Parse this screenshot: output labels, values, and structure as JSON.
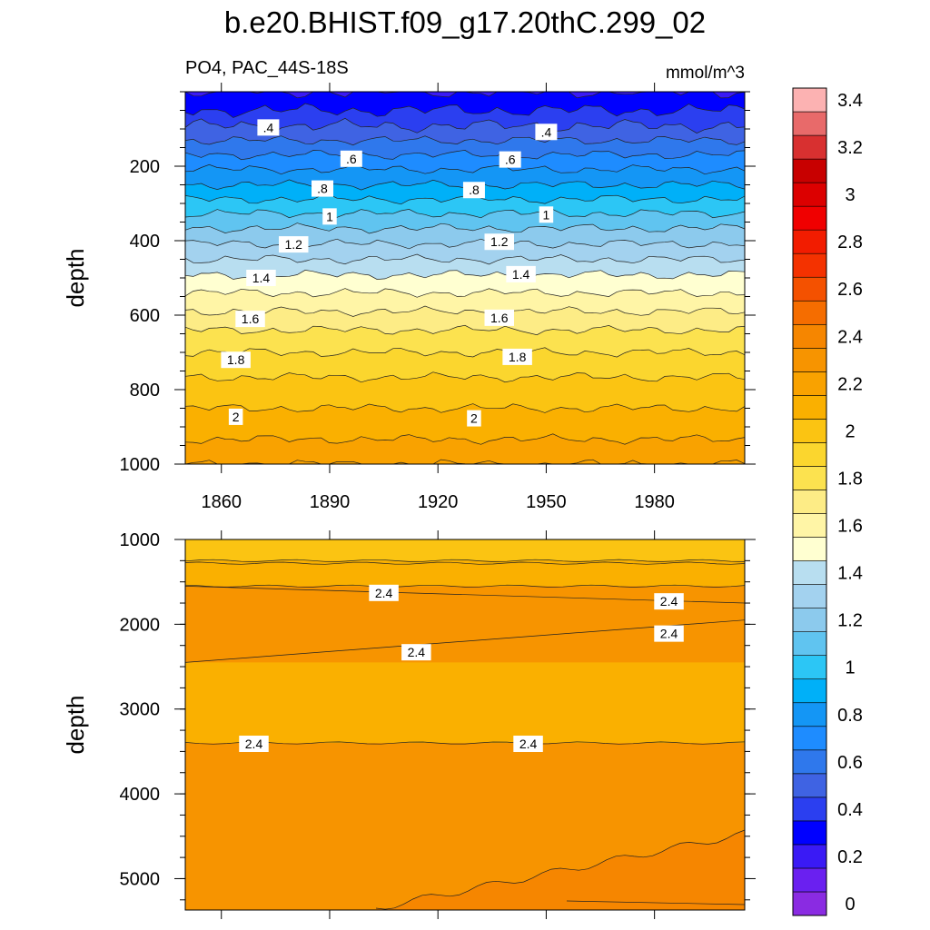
{
  "header": {
    "title": "b.e20.BHIST.f09_g17.20thC.299_02",
    "variable": "PO4, PAC_44S-18S",
    "units": "mmol/m^3"
  },
  "colorbar": {
    "tick_labels": [
      "0",
      "0.2",
      "0.4",
      "0.6",
      "0.8",
      "1",
      "1.2",
      "1.4",
      "1.6",
      "1.8",
      "2",
      "2.2",
      "2.4",
      "2.6",
      "2.8",
      "3",
      "3.2",
      "3.4"
    ],
    "colors": [
      "#8a2be2",
      "#6a20f0",
      "#3a1af5",
      "#0000ff",
      "#2b3ff0",
      "#3f63e3",
      "#2f78ec",
      "#1e8cff",
      "#1496f5",
      "#00b0f8",
      "#2cc6f5",
      "#60c4f0",
      "#8ccaed",
      "#a3d2ef",
      "#b8def0",
      "#ffffd1",
      "#fff5a6",
      "#fdec86",
      "#fce24f",
      "#fbd62e",
      "#fbc412",
      "#fab000",
      "#f9a200",
      "#f79400",
      "#f68600",
      "#f56d00",
      "#f45100",
      "#f43200",
      "#f21c00",
      "#f00000",
      "#dc0000",
      "#c80000",
      "#d83030",
      "#e86a6a",
      "#fcb2b2"
    ]
  },
  "chart_data": [
    {
      "type": "contour",
      "panel": "upper",
      "xlabel": "",
      "ylabel": "depth",
      "xlim": [
        1850,
        2005
      ],
      "ylim": [
        1000,
        0
      ],
      "x_ticks": [
        1860,
        1890,
        1920,
        1950,
        1980
      ],
      "y_ticks": [
        200,
        400,
        600,
        800,
        1000
      ],
      "profile": {
        "depth": [
          0,
          50,
          100,
          150,
          200,
          250,
          300,
          350,
          400,
          450,
          500,
          550,
          600,
          650,
          700,
          750,
          800,
          850,
          900,
          950,
          1000
        ],
        "po4": [
          0.2,
          0.3,
          0.42,
          0.55,
          0.68,
          0.8,
          0.93,
          1.06,
          1.18,
          1.3,
          1.42,
          1.52,
          1.62,
          1.72,
          1.8,
          1.88,
          1.94,
          2.0,
          2.06,
          2.12,
          2.18
        ]
      },
      "contour_labels": [
        {
          "text": ".4",
          "x": 1873,
          "y": 96
        },
        {
          "text": ".4",
          "x": 1950,
          "y": 108
        },
        {
          "text": ".6",
          "x": 1896,
          "y": 180
        },
        {
          "text": ".6",
          "x": 1940,
          "y": 182
        },
        {
          "text": ".8",
          "x": 1888,
          "y": 260
        },
        {
          "text": ".8",
          "x": 1930,
          "y": 264
        },
        {
          "text": "1",
          "x": 1890,
          "y": 335
        },
        {
          "text": "1",
          "x": 1950,
          "y": 330
        },
        {
          "text": "1.2",
          "x": 1880,
          "y": 410
        },
        {
          "text": "1.2",
          "x": 1937,
          "y": 403
        },
        {
          "text": "1.4",
          "x": 1871,
          "y": 500
        },
        {
          "text": "1.4",
          "x": 1943,
          "y": 490
        },
        {
          "text": "1.6",
          "x": 1868,
          "y": 610
        },
        {
          "text": "1.6",
          "x": 1937,
          "y": 607
        },
        {
          "text": "1.8",
          "x": 1864,
          "y": 720
        },
        {
          "text": "1.8",
          "x": 1942,
          "y": 712
        },
        {
          "text": "2",
          "x": 1864,
          "y": 873
        },
        {
          "text": "2",
          "x": 1930,
          "y": 877
        }
      ]
    },
    {
      "type": "contour",
      "panel": "lower",
      "xlabel": "",
      "ylabel": "depth",
      "xlim": [
        1850,
        2005
      ],
      "ylim": [
        5370,
        1000
      ],
      "y_ticks": [
        1000,
        2000,
        3000,
        4000,
        5000
      ],
      "regions": [
        {
          "value_range": [
            2.2,
            2.3
          ],
          "depth_range": [
            1000,
            1250
          ]
        },
        {
          "value_range": [
            2.3,
            2.4
          ],
          "depth_range": [
            1250,
            1550
          ]
        },
        {
          "value_range": [
            2.4,
            2.5
          ],
          "depth_top_1850": 1550,
          "depth_top_2005": 1750,
          "depth_bottom_1850": 2450,
          "depth_bottom_2005": 1950
        },
        {
          "value_range": [
            2.3,
            2.4
          ],
          "depth_range": [
            2450,
            3400
          ]
        },
        {
          "value_range": [
            2.4,
            2.5
          ],
          "depth_range": [
            3400,
            5370
          ]
        },
        {
          "value_range": [
            2.5,
            2.6
          ],
          "region": "bottom-right, deepening toward 1850"
        }
      ],
      "contour_labels": [
        {
          "text": "2.4",
          "x": 1905,
          "y": 1630
        },
        {
          "text": "2.4",
          "x": 1984,
          "y": 1730
        },
        {
          "text": "2.4",
          "x": 1984,
          "y": 2110
        },
        {
          "text": "2.4",
          "x": 1914,
          "y": 2330
        },
        {
          "text": "2.4",
          "x": 1869,
          "y": 3410
        },
        {
          "text": "2.4",
          "x": 1945,
          "y": 3410
        }
      ]
    }
  ]
}
